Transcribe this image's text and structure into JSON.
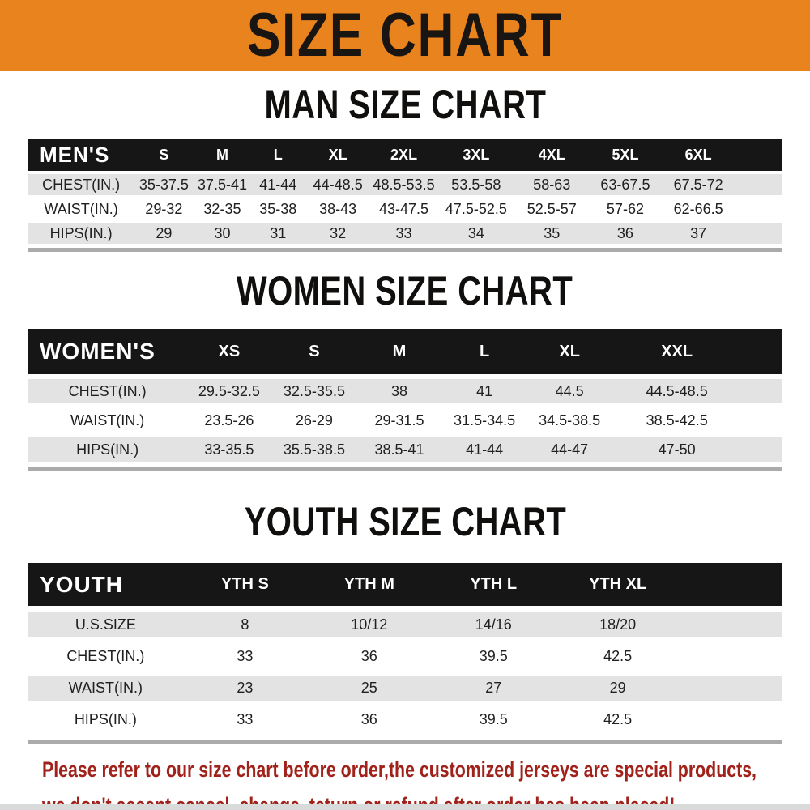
{
  "banner": {
    "title": "SIZE CHART"
  },
  "theme": {
    "accent_orange": "#E8831E",
    "header_black": "#161616",
    "row_gray": "#E3E3E3",
    "row_white": "#FFFFFF",
    "table_strip_gray": "#ABABAB",
    "bottom_strip_gray": "#D9DBDB",
    "notice_red": "#A1221B"
  },
  "sections": [
    {
      "heading": "MAN SIZE CHART",
      "header_label": "MEN'S",
      "columns": [
        "S",
        "M",
        "L",
        "XL",
        "2XL",
        "3XL",
        "4XL",
        "5XL",
        "6XL"
      ],
      "rows": [
        {
          "label": "CHEST(IN.)",
          "values": [
            "35-37.5",
            "37.5-41",
            "41-44",
            "44-48.5",
            "48.5-53.5",
            "53.5-58",
            "58-63",
            "63-67.5",
            "67.5-72"
          ]
        },
        {
          "label": "WAIST(IN.)",
          "values": [
            "29-32",
            "32-35",
            "35-38",
            "38-43",
            "43-47.5",
            "47.5-52.5",
            "52.5-57",
            "57-62",
            "62-66.5"
          ]
        },
        {
          "label": "HIPS(IN.)",
          "values": [
            "29",
            "30",
            "31",
            "32",
            "33",
            "34",
            "35",
            "36",
            "37"
          ]
        }
      ]
    },
    {
      "heading": "WOMEN SIZE CHART",
      "header_label": "WOMEN'S",
      "columns": [
        "XS",
        "S",
        "M",
        "L",
        "XL",
        "XXL"
      ],
      "rows": [
        {
          "label": "CHEST(IN.)",
          "values": [
            "29.5-32.5",
            "32.5-35.5",
            "38",
            "41",
            "44.5",
            "44.5-48.5"
          ]
        },
        {
          "label": "WAIST(IN.)",
          "values": [
            "23.5-26",
            "26-29",
            "29-31.5",
            "31.5-34.5",
            "34.5-38.5",
            "38.5-42.5"
          ]
        },
        {
          "label": "HIPS(IN.)",
          "values": [
            "33-35.5",
            "35.5-38.5",
            "38.5-41",
            "41-44",
            "44-47",
            "47-50"
          ]
        }
      ]
    },
    {
      "heading": "YOUTH SIZE CHART",
      "header_label": "YOUTH",
      "columns": [
        "YTH S",
        "YTH M",
        "YTH L",
        "YTH XL"
      ],
      "rows": [
        {
          "label": "U.S.SIZE",
          "values": [
            "8",
            "10/12",
            "14/16",
            "18/20"
          ]
        },
        {
          "label": "CHEST(IN.)",
          "values": [
            "33",
            "36",
            "39.5",
            "42.5"
          ]
        },
        {
          "label": "WAIST(IN.)",
          "values": [
            "23",
            "25",
            "27",
            "29"
          ]
        },
        {
          "label": "HIPS(IN.)",
          "values": [
            "33",
            "36",
            "39.5",
            "42.5"
          ]
        }
      ]
    }
  ],
  "footer": {
    "line1": "Please refer to our size chart before order,the customized jerseys are special products,",
    "line2": "we don't accept cancel, change, teturn or refund after order has been placed!"
  }
}
